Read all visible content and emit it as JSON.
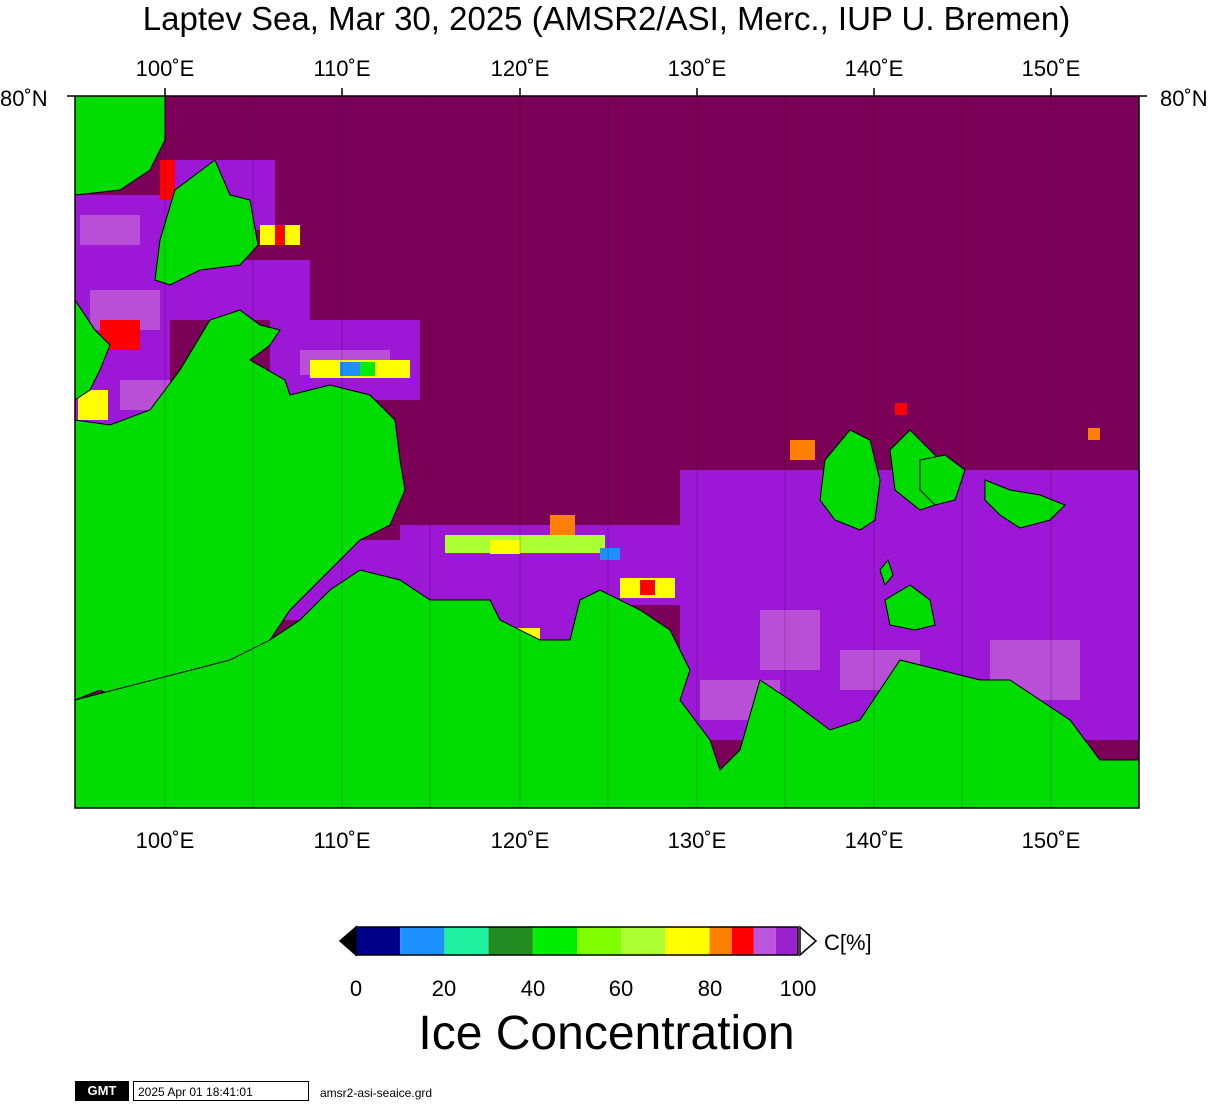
{
  "map": {
    "title": "Laptev Sea, Mar 30, 2025 (AMSR2/ASI, Merc., IUP U. Bremen)",
    "lon_labels": [
      "100˚E",
      "110˚E",
      "120˚E",
      "130˚E",
      "140˚E",
      "150˚E"
    ],
    "lat_label_left": "80˚N",
    "lat_label_right": "80˚N",
    "colors": {
      "ocean_ice_100": "#7a0058",
      "ice_90": "#9d17d6",
      "ice_85": "#b84fd6",
      "ice_80": "#ff0000",
      "ice_75": "#ff7a00",
      "land": "#00dc00",
      "coast": "#000000"
    }
  },
  "colorbar": {
    "ticks": [
      "0",
      "20",
      "40",
      "60",
      "80",
      "100"
    ],
    "unit": "C[%]",
    "title": "Ice Concentration",
    "colors": [
      "#000088",
      "#1e90ff",
      "#20f0a0",
      "#228b22",
      "#00ee00",
      "#7fff00",
      "#aaff33",
      "#ffff00",
      "#ff7f00",
      "#ff0000",
      "#bb55dd",
      "#9922cc"
    ]
  },
  "footer": {
    "logo": "GMT",
    "timestamp": "2025 Apr 01 18:41:01",
    "file": "amsr2-asi-seaice.grd"
  }
}
